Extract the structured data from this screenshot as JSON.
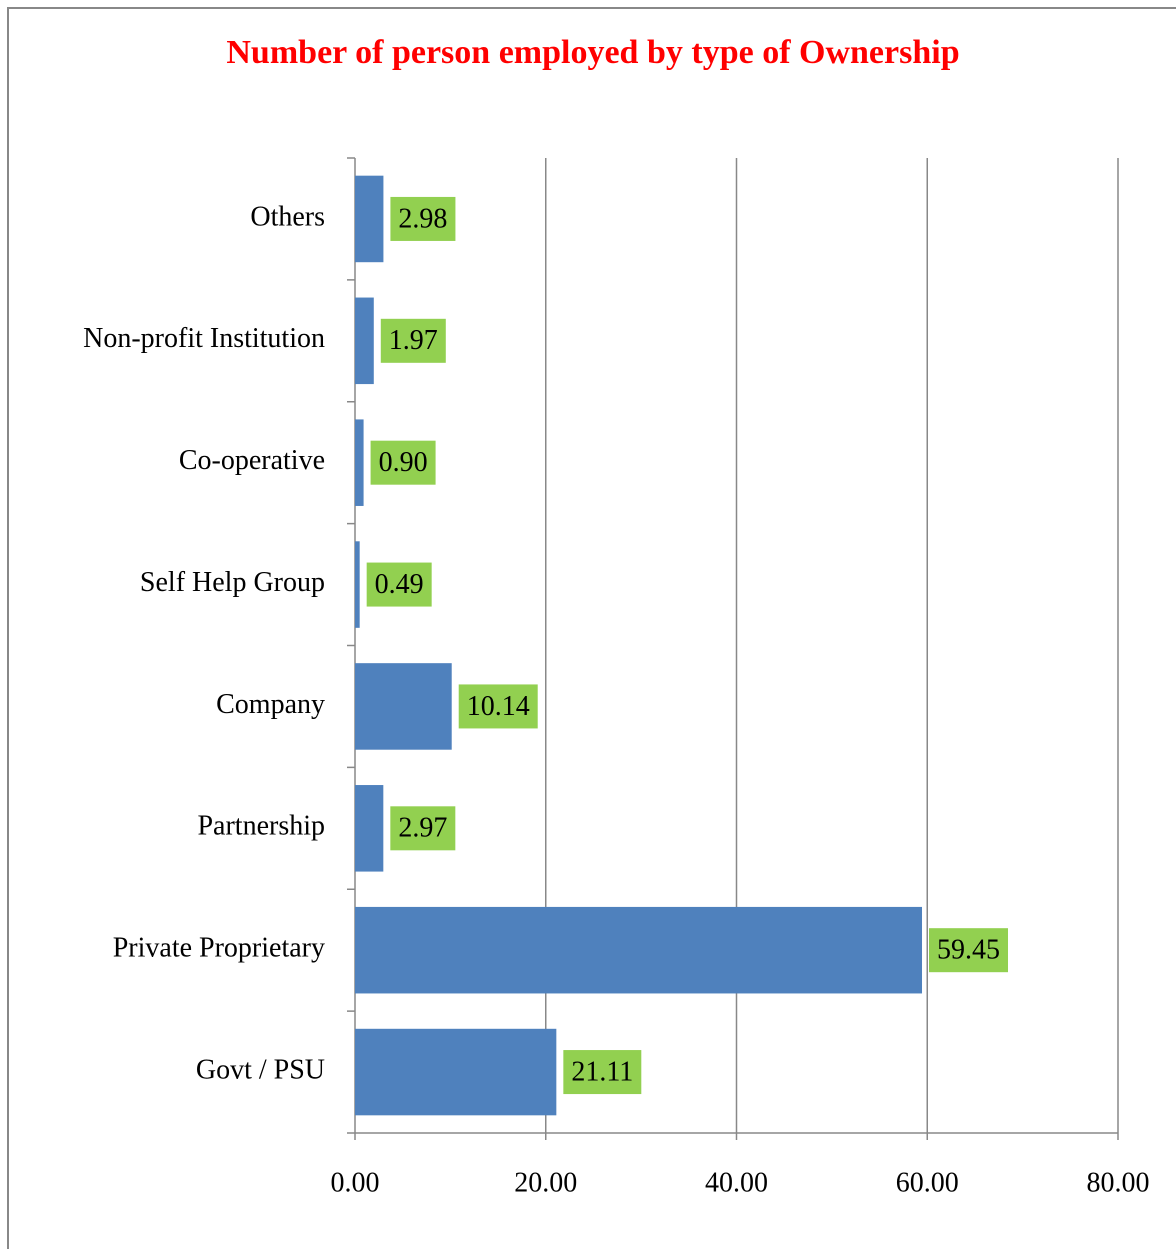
{
  "chart_data": {
    "type": "bar",
    "orientation": "horizontal",
    "title": "Number of person employed by type of Ownership",
    "categories": [
      "Others",
      "Non-profit Institution",
      "Co-operative",
      "Self Help Group",
      "Company",
      "Partnership",
      "Private Proprietary",
      "Govt / PSU"
    ],
    "values": [
      2.98,
      1.97,
      0.9,
      0.49,
      10.14,
      2.97,
      59.45,
      21.11
    ],
    "value_labels": [
      "2.98",
      "1.97",
      "0.90",
      "0.49",
      "10.14",
      "2.97",
      "59.45",
      "21.11"
    ],
    "color": "#4f81bd",
    "label_color": "#92d050",
    "xlim": [
      0,
      80
    ],
    "xticks": [
      {
        "value": 0,
        "label": "0.00"
      },
      {
        "value": 20,
        "label": "20.00"
      },
      {
        "value": 40,
        "label": "40.00"
      },
      {
        "value": 60,
        "label": "60.00"
      },
      {
        "value": 80,
        "label": "80.00"
      }
    ],
    "grid": true
  }
}
